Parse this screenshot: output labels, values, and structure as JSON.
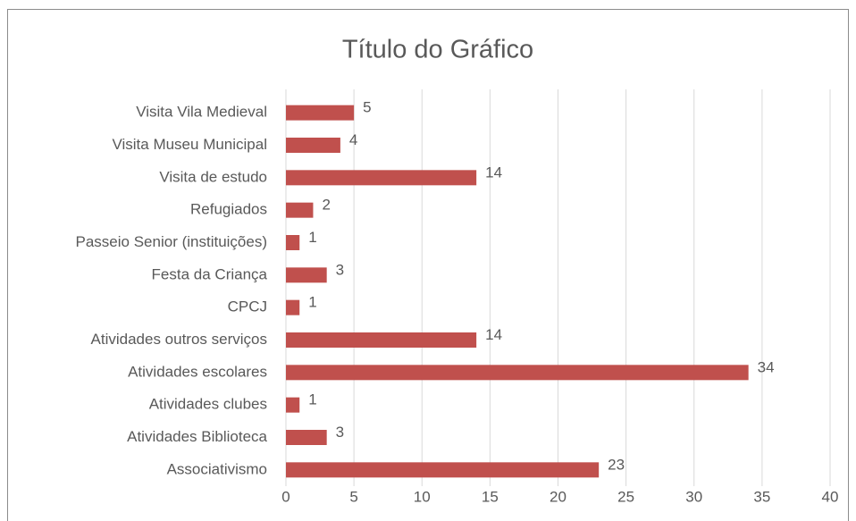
{
  "chart_data": {
    "type": "hbar",
    "title": "Título do Gráfico",
    "categories": [
      "Visita Vila Medieval",
      "Visita Museu Municipal",
      "Visita de estudo",
      "Refugiados",
      "Passeio Senior (instituições)",
      "Festa da Criança",
      "CPCJ",
      "Atividades outros serviços",
      "Atividades escolares",
      "Atividades clubes",
      "Atividades Biblioteca",
      "Associativismo"
    ],
    "values": [
      5,
      4,
      14,
      2,
      1,
      3,
      1,
      14,
      34,
      1,
      3,
      23
    ],
    "color": "#c0504d",
    "xlim": [
      0,
      40
    ],
    "xticks": [
      0,
      5,
      10,
      15,
      20,
      25,
      30,
      35,
      40
    ],
    "grid": true
  }
}
